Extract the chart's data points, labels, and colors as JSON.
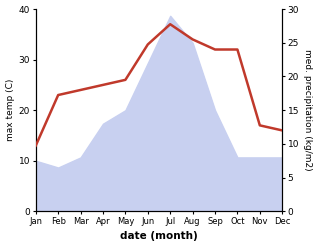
{
  "months": [
    "Jan",
    "Feb",
    "Mar",
    "Apr",
    "May",
    "Jun",
    "Jul",
    "Aug",
    "Sep",
    "Oct",
    "Nov",
    "Dec"
  ],
  "temperature": [
    13,
    23,
    24,
    25,
    26,
    33,
    37,
    34,
    32,
    32,
    17,
    16
  ],
  "precipitation": [
    7.5,
    6.5,
    8.0,
    13.0,
    15.0,
    22.0,
    29.0,
    25.0,
    15.0,
    8.0,
    8.0,
    8.0
  ],
  "temp_color": "#c0392b",
  "precip_fill_color": "#c8d0f0",
  "temp_ylim": [
    0,
    40
  ],
  "precip_ylim": [
    0,
    30
  ],
  "xlabel": "date (month)",
  "ylabel_left": "max temp (C)",
  "ylabel_right": "med. precipitation (kg/m2)",
  "temp_linewidth": 1.8,
  "bg_color": "#ffffff",
  "left_yticks": [
    0,
    10,
    20,
    30,
    40
  ],
  "right_yticks": [
    0,
    5,
    10,
    15,
    20,
    25,
    30
  ]
}
